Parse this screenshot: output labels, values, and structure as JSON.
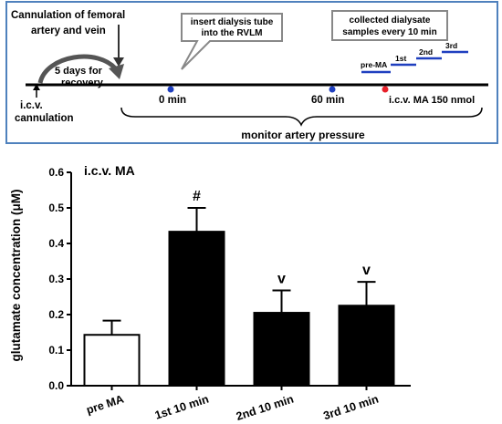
{
  "timeline": {
    "cannulation_femoral_line1": "Cannulation  of femoral",
    "cannulation_femoral_line2": "artery and vein",
    "recovery_line1": "5 days for",
    "recovery_line2": "recovery",
    "icv_line1": "i.c.v.",
    "icv_line2": "cannulation",
    "insert_line1": "insert dialysis tube",
    "insert_line2": "into the RVLM",
    "collected_line1": "collected dialysate",
    "collected_line2": "samples every 10 min",
    "pre_ma_label": "pre-MA",
    "first_label": "1st",
    "second_label": "2nd",
    "third_label": "3rd",
    "time_0": "0 min",
    "time_60": "60 min",
    "ma_injection": "i.c.v. MA 150 nmol",
    "monitor_label": "monitor artery pressure",
    "dot_colors": {
      "start": "#1f3fbf",
      "sixty": "#1f3fbf",
      "ma": "#e8202a"
    },
    "sample_bar_color": "#1f3fbf",
    "border_color": "#4f81bd"
  },
  "chart_data": {
    "type": "bar",
    "title": "i.c.v. MA",
    "ylabel": "glutamate concentration (μM)",
    "xlabel": "",
    "ylim": [
      0,
      0.6
    ],
    "yticks": [
      0.0,
      0.1,
      0.2,
      0.3,
      0.4,
      0.5,
      0.6
    ],
    "ytick_labels": [
      "0.0",
      "0.1",
      "0.2",
      "0.3",
      "0.4",
      "0.5",
      "0.6"
    ],
    "categories": [
      "pre MA",
      "1st 10 min",
      "2nd 10 min",
      "3rd 10 min"
    ],
    "values": [
      0.143,
      0.433,
      0.205,
      0.225
    ],
    "errors": [
      0.04,
      0.067,
      0.063,
      0.067
    ],
    "fills": [
      "#ffffff",
      "#000000",
      "#000000",
      "#000000"
    ],
    "annotations": [
      "",
      "#",
      "v",
      "v"
    ]
  }
}
